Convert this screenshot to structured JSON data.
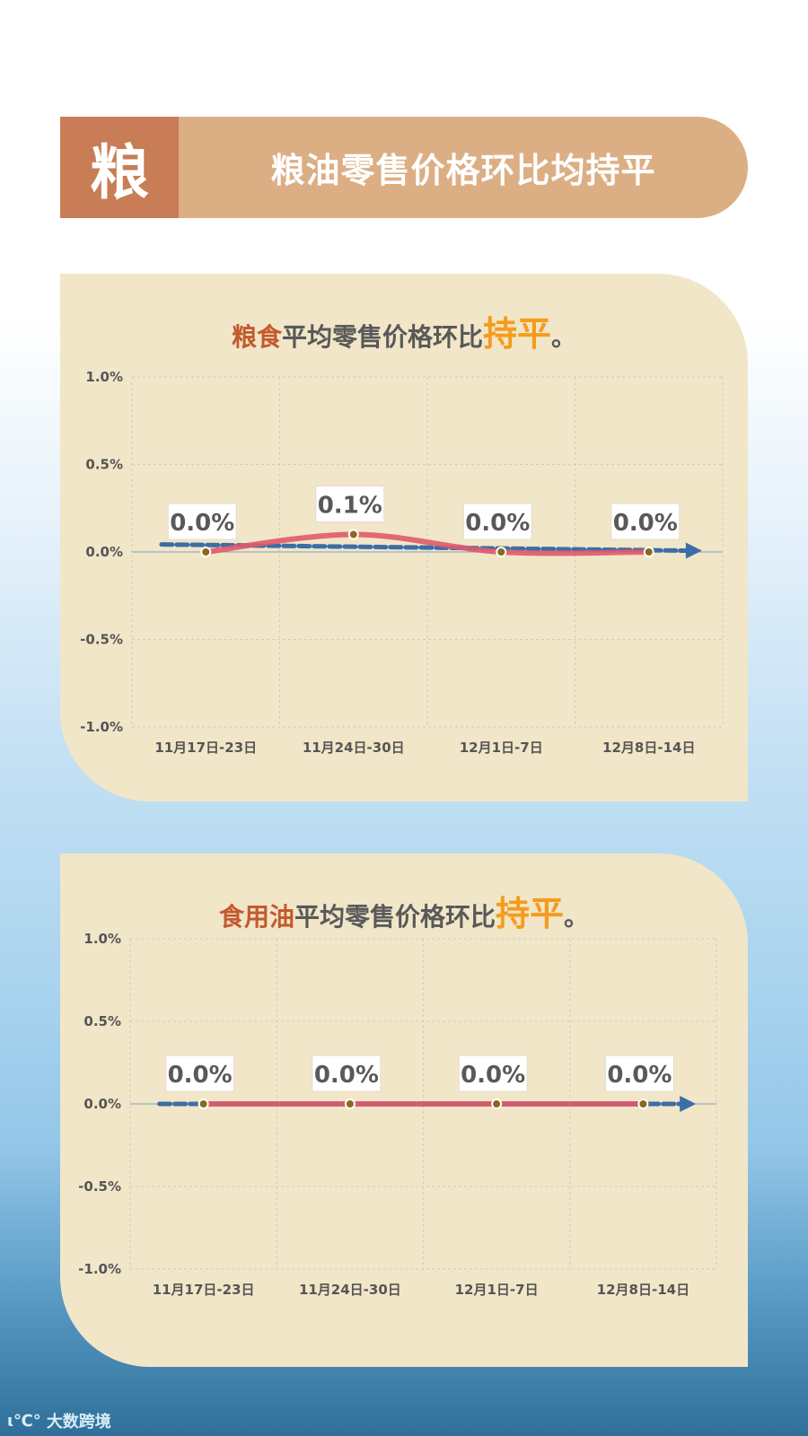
{
  "header": {
    "badge": "粮",
    "title": "粮油零售价格环比均持平"
  },
  "footer": {
    "logo_text": "大数跨境",
    "logo_mark": "ι℃°"
  },
  "charts": [
    {
      "title_highlight": "粮食",
      "title_mid": "平均零售价格环比",
      "title_emph": "持平",
      "title_end": "。"
    },
    {
      "title_highlight": "食用油",
      "title_mid": "平均零售价格环比",
      "title_emph": "持平",
      "title_end": "。"
    }
  ],
  "chart_data": [
    {
      "type": "line",
      "categories": [
        "11月17日-23日",
        "11月24日-30日",
        "12月1日-7日",
        "12月8日-14日"
      ],
      "values": [
        0.0,
        0.1,
        0.0,
        0.0
      ],
      "data_labels": [
        "0.0%",
        "0.1%",
        "0.0%",
        "0.0%"
      ],
      "y_ticks": [
        "1.0%",
        "0.5%",
        "0.0%",
        "-0.5%",
        "-1.0%"
      ],
      "ylim": [
        -1.0,
        1.0
      ],
      "trendline": true,
      "grid": true,
      "colors": {
        "line": "#e05a6a",
        "trend": "#3b6da6",
        "marker": "#8a6a1a"
      }
    },
    {
      "type": "line",
      "categories": [
        "11月17日-23日",
        "11月24日-30日",
        "12月1日-7日",
        "12月8日-14日"
      ],
      "values": [
        0.0,
        0.0,
        0.0,
        0.0
      ],
      "data_labels": [
        "0.0%",
        "0.0%",
        "0.0%",
        "0.0%"
      ],
      "y_ticks": [
        "1.0%",
        "0.5%",
        "0.0%",
        "-0.5%",
        "-1.0%"
      ],
      "ylim": [
        -1.0,
        1.0
      ],
      "trendline": true,
      "grid": true,
      "colors": {
        "line": "#e05a6a",
        "trend": "#3b6da6",
        "marker": "#8a6a1a"
      }
    }
  ]
}
